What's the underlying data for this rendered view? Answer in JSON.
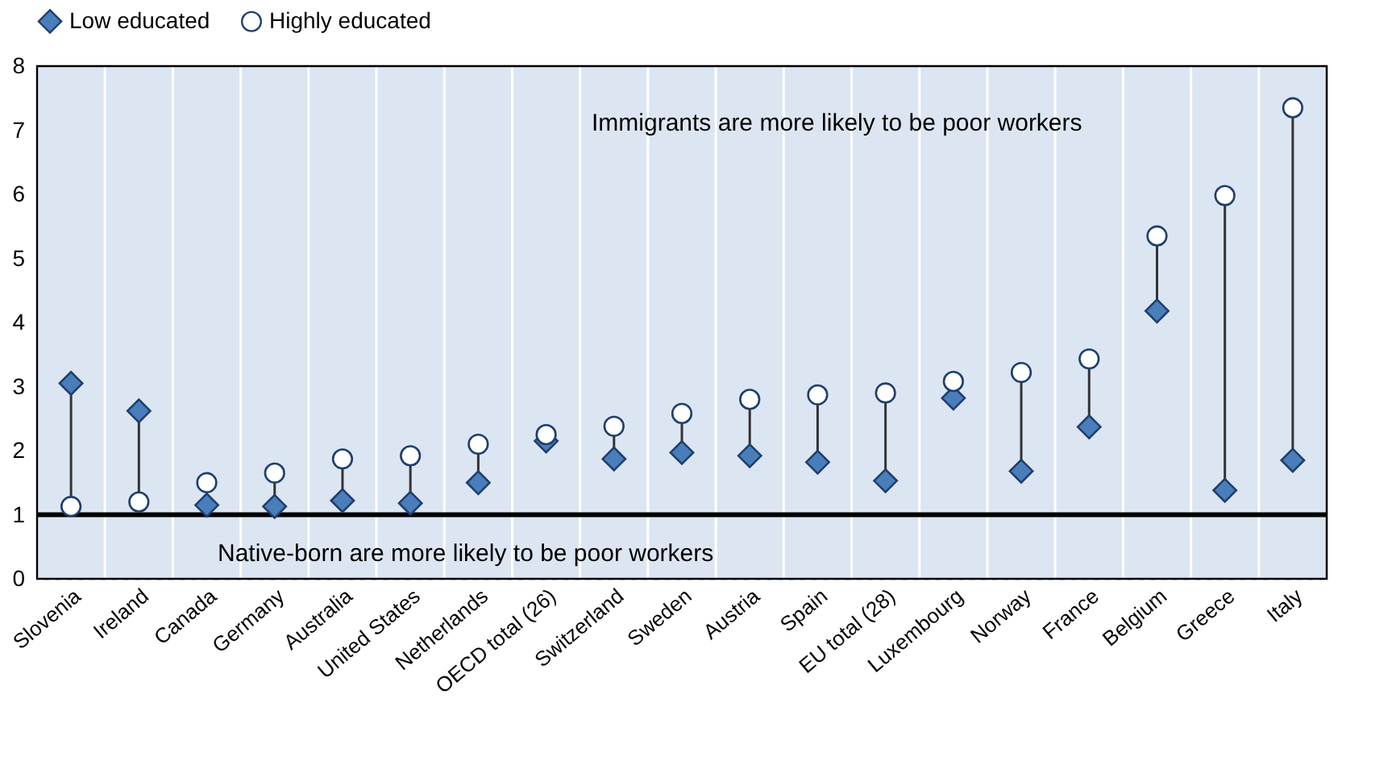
{
  "chart_data": {
    "type": "scatter",
    "categories": [
      "Slovenia",
      "Ireland",
      "Canada",
      "Germany",
      "Australia",
      "United States",
      "Netherlands",
      "OECD total (26)",
      "Switzerland",
      "Sweden",
      "Austria",
      "Spain",
      "EU total (28)",
      "Luxembourg",
      "Norway",
      "France",
      "Belgium",
      "Greece",
      "Italy"
    ],
    "series": [
      {
        "name": "Low educated",
        "color": "#4a7ebb",
        "marker": "diamond",
        "values": [
          3.05,
          2.62,
          1.15,
          1.13,
          1.22,
          1.18,
          1.5,
          2.15,
          1.87,
          1.97,
          1.92,
          1.82,
          1.53,
          2.82,
          1.68,
          2.37,
          4.18,
          1.38,
          1.85
        ]
      },
      {
        "name": "Highly educated",
        "color": "#ffffff",
        "marker": "circle",
        "values": [
          1.13,
          1.2,
          1.5,
          1.65,
          1.87,
          1.92,
          2.1,
          2.25,
          2.38,
          2.58,
          2.8,
          2.87,
          2.9,
          3.08,
          3.22,
          3.43,
          5.35,
          5.98,
          7.35
        ]
      }
    ],
    "ylim": [
      0,
      8
    ],
    "yticks": [
      0,
      1,
      2,
      3,
      4,
      5,
      6,
      7,
      8
    ],
    "grid": true,
    "legend": "top",
    "ref_lines": [
      {
        "axis": "y",
        "value": 1,
        "color": "#000000"
      }
    ],
    "annotations": [
      "Immigrants are more likely to be poor workers",
      "Native-born are more likely to be poor workers"
    ]
  }
}
